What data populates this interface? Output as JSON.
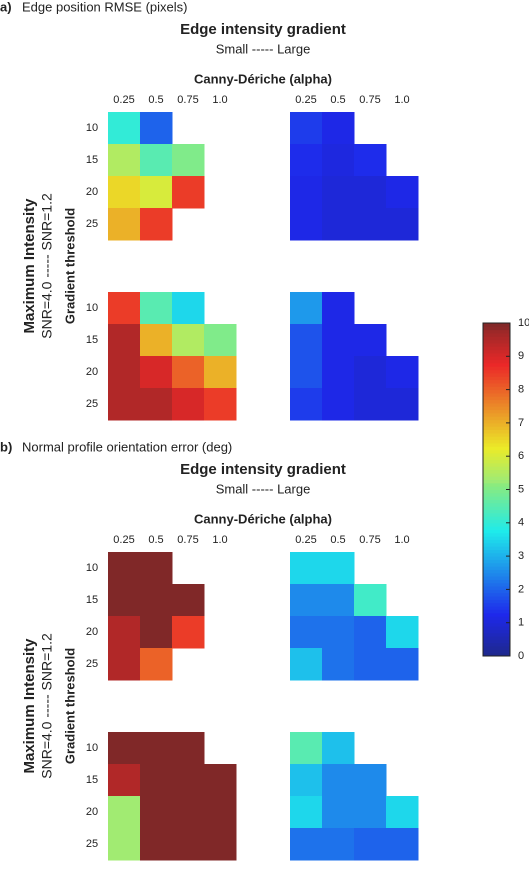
{
  "chart_data": [
    {
      "type": "heatmap",
      "panel_label": "a)",
      "caption": "Edge position RMSE (pixels)",
      "title": "Edge intensity gradient",
      "subtitle": "Small ----- Large",
      "x_title": "Canny-Dériche (alpha)",
      "x_categories": [
        "0.25",
        "0.5",
        "0.75",
        "1.0"
      ],
      "y_categories": [
        "10",
        "15",
        "20",
        "25"
      ],
      "row_title": "Maximum Intensity",
      "row_subtitle": "SNR=4.0 ----- SNR=1.2",
      "y_title": "Gradient threshold",
      "z": [
        [
          [
            4,
            2,
            null,
            null
          ],
          [
            5.5,
            4.5,
            5,
            null
          ],
          [
            6.5,
            6,
            8.5,
            null
          ],
          [
            7,
            8.5,
            null,
            null
          ]
        ],
        [
          [
            1.5,
            1.2,
            null,
            null
          ],
          [
            1.3,
            1.1,
            1.3,
            null
          ],
          [
            1.2,
            1,
            1,
            1.2
          ],
          [
            1.2,
            1,
            1,
            1
          ]
        ],
        [
          [
            8.5,
            4.5,
            3.5,
            null
          ],
          [
            9.5,
            7,
            5.5,
            5
          ],
          [
            9.5,
            9,
            8,
            7
          ],
          [
            9.5,
            9.5,
            9,
            8.5
          ]
        ],
        [
          [
            2.7,
            1.2,
            null,
            null
          ],
          [
            1.8,
            1.2,
            1.2,
            null
          ],
          [
            1.8,
            1.2,
            1,
            1.2
          ],
          [
            1.5,
            1.2,
            1,
            1
          ]
        ]
      ]
    },
    {
      "type": "heatmap",
      "panel_label": "b)",
      "caption": "Normal profile orientation error (deg)",
      "title": "Edge intensity gradient",
      "subtitle": "Small ----- Large",
      "x_title": "Canny-Dériche (alpha)",
      "x_categories": [
        "0.25",
        "0.5",
        "0.75",
        "1.0"
      ],
      "y_categories": [
        "10",
        "15",
        "20",
        "25"
      ],
      "row_title": "Maximum Intensity",
      "row_subtitle": "SNR=4.0 ----- SNR=1.2",
      "y_title": "Gradient threshold",
      "z": [
        [
          [
            10,
            10,
            null,
            null
          ],
          [
            10,
            10,
            10,
            null
          ],
          [
            9.5,
            10,
            8.5,
            null
          ],
          [
            9.5,
            8,
            null,
            null
          ]
        ],
        [
          [
            3.5,
            3.5,
            null,
            null
          ],
          [
            2.5,
            2.5,
            4.2,
            null
          ],
          [
            2.2,
            2.2,
            2,
            3.5
          ],
          [
            3.2,
            2.2,
            2,
            2
          ]
        ],
        [
          [
            10,
            10,
            10,
            null
          ],
          [
            9.5,
            10,
            10,
            10
          ],
          [
            5.3,
            10,
            10,
            10
          ],
          [
            5.3,
            10,
            10,
            10
          ]
        ],
        [
          [
            4.5,
            3.2,
            null,
            null
          ],
          [
            3.2,
            2.5,
            2.5,
            null
          ],
          [
            3.5,
            2.5,
            2.5,
            3.5
          ],
          [
            2.2,
            2.2,
            2,
            2
          ]
        ]
      ]
    }
  ],
  "colorbar": {
    "zlim": [
      0,
      10
    ],
    "ticks": [
      0,
      1,
      2,
      3,
      4,
      5,
      6,
      7,
      8,
      9,
      10
    ],
    "colormap": "jet"
  }
}
